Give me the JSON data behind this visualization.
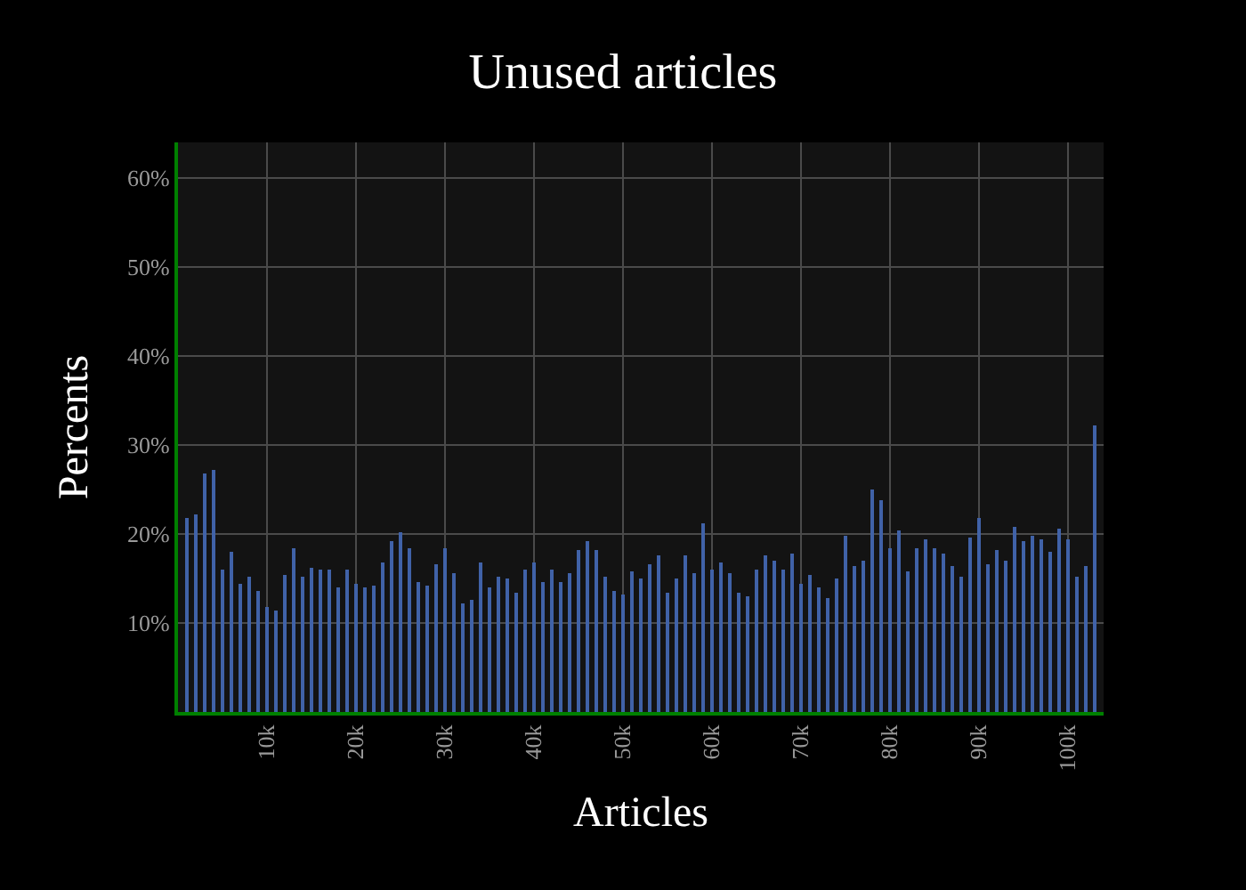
{
  "chart_data": {
    "type": "bar",
    "title": "Unused articles",
    "xlabel": "Articles",
    "ylabel": "Percents",
    "x": [
      1000,
      2000,
      3000,
      4000,
      5000,
      6000,
      7000,
      8000,
      9000,
      10000,
      11000,
      12000,
      13000,
      14000,
      15000,
      16000,
      17000,
      18000,
      19000,
      20000,
      21000,
      22000,
      23000,
      24000,
      25000,
      26000,
      27000,
      28000,
      29000,
      30000,
      31000,
      32000,
      33000,
      34000,
      35000,
      36000,
      37000,
      38000,
      39000,
      40000,
      41000,
      42000,
      43000,
      44000,
      45000,
      46000,
      47000,
      48000,
      49000,
      50000,
      51000,
      52000,
      53000,
      54000,
      55000,
      56000,
      57000,
      58000,
      59000,
      60000,
      61000,
      62000,
      63000,
      64000,
      65000,
      66000,
      67000,
      68000,
      69000,
      70000,
      71000,
      72000,
      73000,
      74000,
      75000,
      76000,
      77000,
      78000,
      79000,
      80000,
      81000,
      82000,
      83000,
      84000,
      85000,
      86000,
      87000,
      88000,
      89000,
      90000,
      91000,
      92000,
      93000,
      94000,
      95000,
      96000,
      97000,
      98000,
      99000,
      100000,
      101000,
      102000,
      103000
    ],
    "values": [
      21.8,
      22.2,
      26.8,
      27.2,
      16.0,
      18.0,
      14.5,
      15.2,
      13.6,
      11.8,
      11.5,
      15.4,
      18.4,
      15.2,
      16.2,
      16.0,
      16.0,
      14.0,
      16.0,
      14.4,
      14.0,
      14.2,
      16.9,
      19.3,
      20.3,
      18.5,
      14.7,
      14.3,
      16.6,
      18.5,
      15.6,
      12.3,
      12.7,
      16.8,
      14.0,
      15.2,
      15.0,
      13.4,
      16.0,
      16.8,
      14.6,
      16.0,
      14.6,
      15.6,
      18.2,
      19.2,
      18.2,
      15.2,
      13.6,
      13.2,
      15.8,
      15.0,
      16.6,
      17.6,
      13.4,
      15.0,
      17.6,
      15.6,
      21.2,
      16.0,
      16.8,
      15.6,
      13.4,
      13.0,
      16.0,
      17.6,
      17.0,
      16.0,
      17.8,
      14.4,
      15.4,
      14.0,
      12.8,
      15.0,
      19.8,
      16.4,
      17.0,
      25.0,
      23.8,
      18.4,
      20.4,
      15.8,
      18.4,
      19.4,
      18.4,
      17.8,
      16.4,
      15.2,
      19.6,
      21.8,
      16.6,
      18.2,
      17.0,
      20.8,
      19.2,
      19.8,
      19.4,
      18.0,
      20.6,
      19.4,
      15.2,
      16.4,
      32.2
    ],
    "color": "#4062a8",
    "xlim": [
      0,
      104000
    ],
    "ylim": [
      0,
      64
    ],
    "xticks": [
      {
        "value": 10000,
        "label": "10k"
      },
      {
        "value": 20000,
        "label": "20k"
      },
      {
        "value": 30000,
        "label": "30k"
      },
      {
        "value": 40000,
        "label": "40k"
      },
      {
        "value": 50000,
        "label": "50k"
      },
      {
        "value": 60000,
        "label": "60k"
      },
      {
        "value": 70000,
        "label": "70k"
      },
      {
        "value": 80000,
        "label": "80k"
      },
      {
        "value": 90000,
        "label": "90k"
      },
      {
        "value": 100000,
        "label": "100k"
      }
    ],
    "yticks": [
      {
        "value": 10,
        "label": "10%"
      },
      {
        "value": 20,
        "label": "20%"
      },
      {
        "value": 30,
        "label": "30%"
      },
      {
        "value": 40,
        "label": "40%"
      },
      {
        "value": 50,
        "label": "50%"
      },
      {
        "value": 60,
        "label": "60%"
      }
    ],
    "grid": true
  }
}
